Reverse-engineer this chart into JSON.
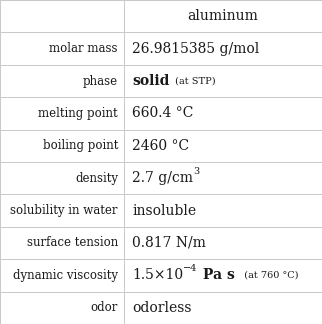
{
  "title": "aluminum",
  "bg_color": "#ffffff",
  "border_color": "#c8c8c8",
  "text_color": "#1a1a1a",
  "label_fontsize": 8.5,
  "col_split": 0.385,
  "rows": [
    {
      "label": "molar mass",
      "value": "26.9815385 g/mol",
      "type": "simple"
    },
    {
      "label": "phase",
      "type": "phase",
      "main": "solid",
      "annotation": " (at STP)"
    },
    {
      "label": "melting point",
      "value": "660.4 °C",
      "type": "simple"
    },
    {
      "label": "boiling point",
      "value": "2460 °C",
      "type": "simple"
    },
    {
      "label": "density",
      "type": "superscript",
      "base": "2.7 g/cm",
      "sup": "3"
    },
    {
      "label": "solubility in water",
      "value": "insoluble",
      "type": "simple"
    },
    {
      "label": "surface tension",
      "value": "0.817 N/m",
      "type": "simple"
    },
    {
      "label": "dynamic viscosity",
      "type": "viscosity",
      "base": "1.5×10",
      "sup": "−4",
      "bold": " Pa s",
      "annotation": "  (at 760 °C)"
    },
    {
      "label": "odor",
      "value": "odorless",
      "type": "simple"
    }
  ]
}
